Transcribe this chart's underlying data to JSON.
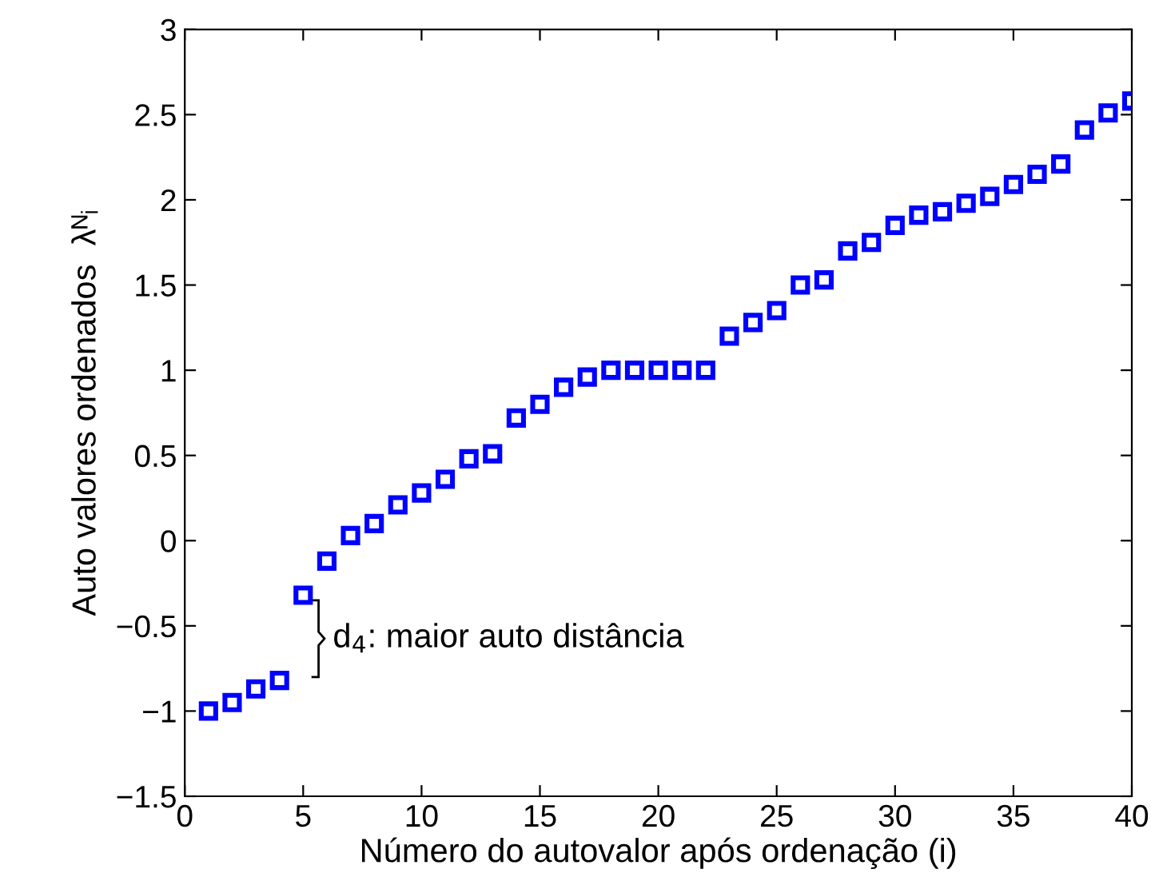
{
  "chart_data": {
    "type": "scatter",
    "xlabel": "Número do autovalor após ordenação (i)",
    "ylabel": "Auto valores ordenados  λᴺᵢ",
    "x": [
      1,
      2,
      3,
      4,
      5,
      6,
      7,
      8,
      9,
      10,
      11,
      12,
      13,
      14,
      15,
      16,
      17,
      18,
      19,
      20,
      21,
      22,
      23,
      24,
      25,
      26,
      27,
      28,
      29,
      30,
      31,
      32,
      33,
      34,
      35,
      36,
      37,
      38,
      39,
      40
    ],
    "series": [
      {
        "color": "#0000ff",
        "values": [
          -1.0,
          -0.95,
          -0.87,
          -0.82,
          -0.32,
          -0.12,
          0.03,
          0.1,
          0.21,
          0.28,
          0.36,
          0.48,
          0.51,
          0.72,
          0.8,
          0.9,
          0.96,
          1.0,
          1.0,
          1.0,
          1.0,
          1.0,
          1.2,
          1.28,
          1.35,
          1.5,
          1.53,
          1.7,
          1.75,
          1.85,
          1.91,
          1.93,
          1.98,
          2.02,
          2.09,
          2.15,
          2.21,
          2.41,
          2.51,
          2.58
        ]
      }
    ],
    "xlim": [
      0,
      40
    ],
    "ylim": [
      -1.5,
      3
    ],
    "xticks": [
      0,
      5,
      10,
      15,
      20,
      25,
      30,
      35,
      40
    ],
    "yticks": [
      {
        "value": -1.5,
        "label": "−1.5"
      },
      {
        "value": -1,
        "label": "−1"
      },
      {
        "value": -0.5,
        "label": "−0.5"
      },
      0,
      0.5,
      1,
      1.5,
      2,
      2.5,
      3
    ],
    "marker": "square",
    "grid": false,
    "annotations": [
      "d$_{4}$: maior auto distância"
    ]
  }
}
